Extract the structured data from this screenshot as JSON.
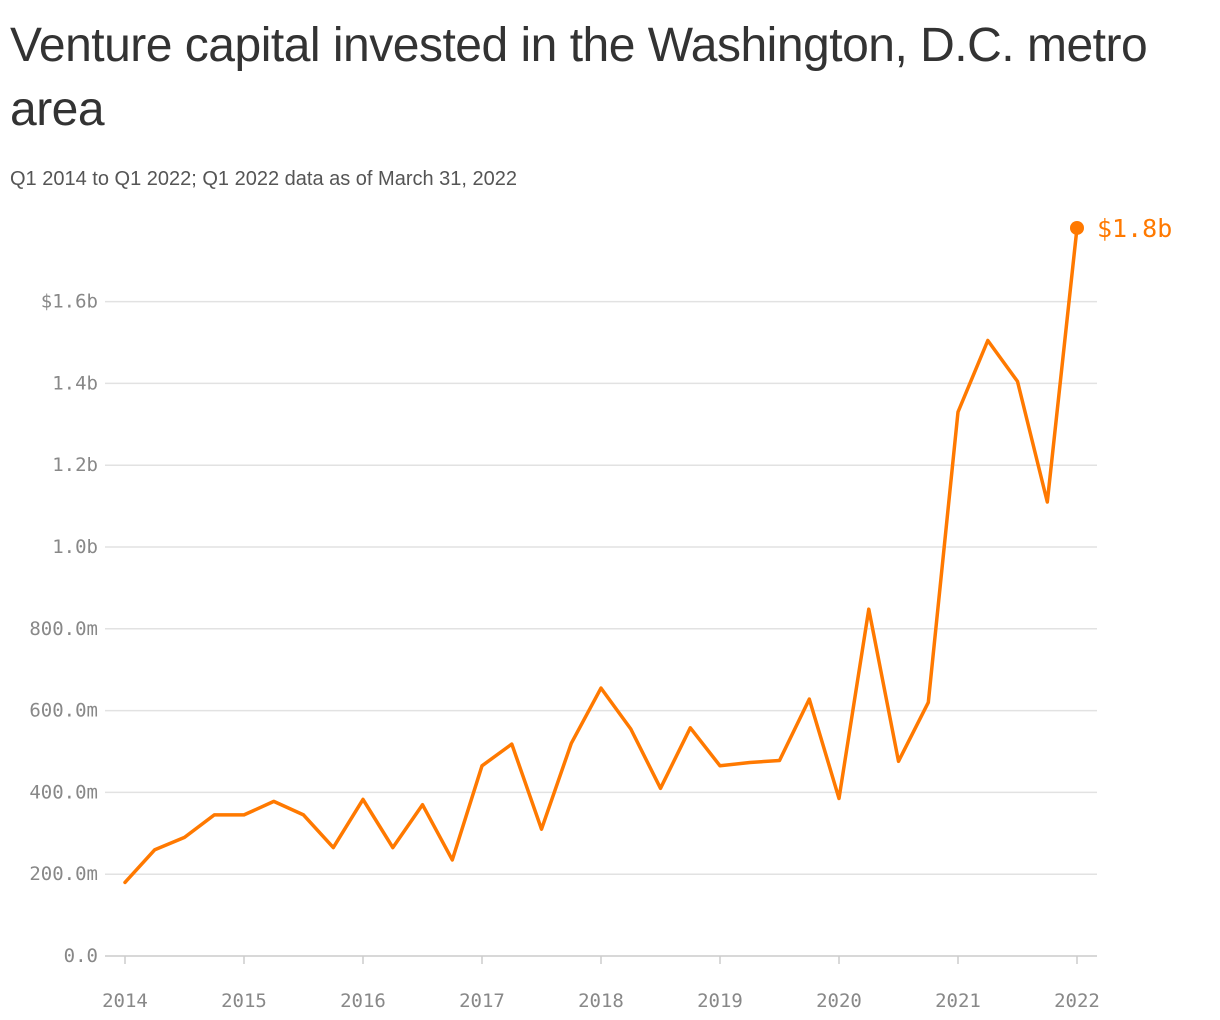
{
  "title": "Venture capital invested in the Washington, D.C. metro area",
  "subtitle": "Q1 2014 to Q1 2022; Q1 2022 data as of March 31, 2022",
  "colors": {
    "line": "#ff7900",
    "grid": "#e2e2e2",
    "axis": "#cccccc",
    "tick_text": "#888888"
  },
  "chart_data": {
    "type": "line",
    "title": "Venture capital invested in the Washington, D.C. metro area",
    "subtitle": "Q1 2014 to Q1 2022; Q1 2022 data as of March 31, 2022",
    "xlabel": "",
    "ylabel": "",
    "x_unit": "quarter",
    "ylim": [
      0,
      1.8
    ],
    "y_unit": "billion USD",
    "grid": "horizontal",
    "y_ticks": [
      {
        "value": 0,
        "label": "0.0"
      },
      {
        "value": 0.2,
        "label": "200.0m"
      },
      {
        "value": 0.4,
        "label": "400.0m"
      },
      {
        "value": 0.6,
        "label": "600.0m"
      },
      {
        "value": 0.8,
        "label": "800.0m"
      },
      {
        "value": 1.0,
        "label": "1.0b"
      },
      {
        "value": 1.2,
        "label": "1.2b"
      },
      {
        "value": 1.4,
        "label": "1.4b"
      },
      {
        "value": 1.6,
        "label": "$1.6b"
      }
    ],
    "x_ticks": [
      "2014",
      "2015",
      "2016",
      "2017",
      "2018",
      "2019",
      "2020",
      "2021",
      "2022"
    ],
    "x": [
      "Q1 2014",
      "Q2 2014",
      "Q3 2014",
      "Q4 2014",
      "Q1 2015",
      "Q2 2015",
      "Q3 2015",
      "Q4 2015",
      "Q1 2016",
      "Q2 2016",
      "Q3 2016",
      "Q4 2016",
      "Q1 2017",
      "Q2 2017",
      "Q3 2017",
      "Q4 2017",
      "Q1 2018",
      "Q2 2018",
      "Q3 2018",
      "Q4 2018",
      "Q1 2019",
      "Q2 2019",
      "Q3 2019",
      "Q4 2019",
      "Q1 2020",
      "Q2 2020",
      "Q3 2020",
      "Q4 2020",
      "Q1 2021",
      "Q2 2021",
      "Q3 2021",
      "Q4 2021",
      "Q1 2022"
    ],
    "series": [
      {
        "values": [
          0.18,
          0.26,
          0.29,
          0.345,
          0.345,
          0.378,
          0.345,
          0.265,
          0.383,
          0.265,
          0.37,
          0.235,
          0.465,
          0.518,
          0.31,
          0.52,
          0.655,
          0.555,
          0.41,
          0.558,
          0.465,
          0.473,
          0.478,
          0.628,
          0.385,
          0.848,
          0.476,
          0.62,
          1.33,
          1.505,
          1.405,
          1.11,
          1.78
        ]
      }
    ],
    "end_label": "$1.8b"
  }
}
